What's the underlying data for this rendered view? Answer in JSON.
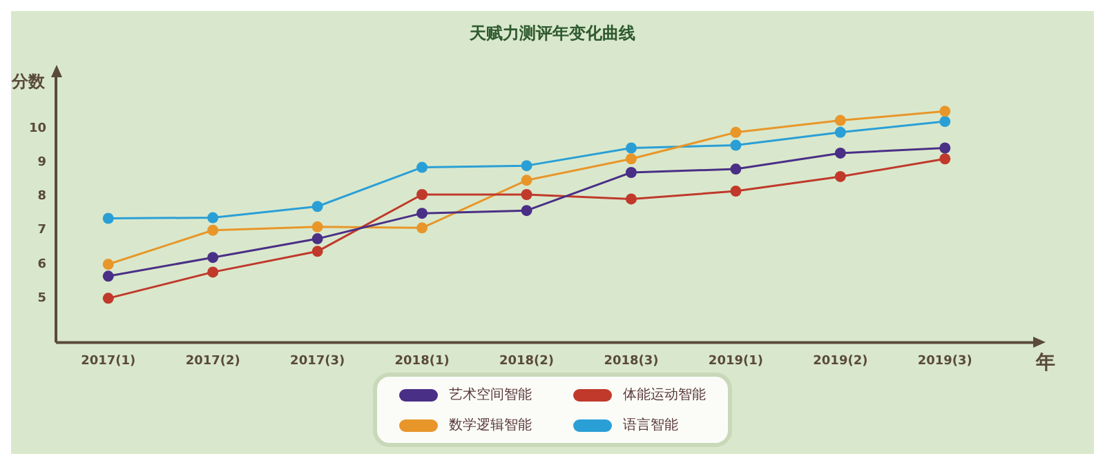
{
  "chart_data": {
    "type": "line",
    "title": "天赋力测评年变化曲线",
    "ylabel": "分数",
    "xlabel": "年",
    "categories": [
      "2017(1)",
      "2017(2)",
      "2017(3)",
      "2018(1)",
      "2018(2)",
      "2018(3)",
      "2019(1)",
      "2019(2)",
      "2019(3)"
    ],
    "series": [
      {
        "name": "艺术空间智能",
        "color": "#4a2f86",
        "values": [
          5.65,
          6.2,
          6.75,
          7.5,
          7.58,
          8.7,
          8.8,
          9.27,
          9.42
        ]
      },
      {
        "name": "体能运动智能",
        "color": "#c0392b",
        "values": [
          5.0,
          5.77,
          6.38,
          8.05,
          8.05,
          7.92,
          8.15,
          8.58,
          9.1
        ]
      },
      {
        "name": "数学逻辑智能",
        "color": "#e8962a",
        "values": [
          6.0,
          7.0,
          7.1,
          7.07,
          8.47,
          9.1,
          9.88,
          10.23,
          10.5
        ]
      },
      {
        "name": "语言智能",
        "color": "#2a9fd6",
        "values": [
          7.35,
          7.37,
          7.7,
          8.85,
          8.9,
          9.42,
          9.5,
          9.88,
          10.2
        ]
      }
    ],
    "ylim": [
      3.7,
      11.5
    ],
    "yticks": [
      5,
      6,
      7,
      8,
      9,
      10
    ],
    "grid": false,
    "legend": "bottom",
    "marker": "circle",
    "line_style": "solid"
  }
}
